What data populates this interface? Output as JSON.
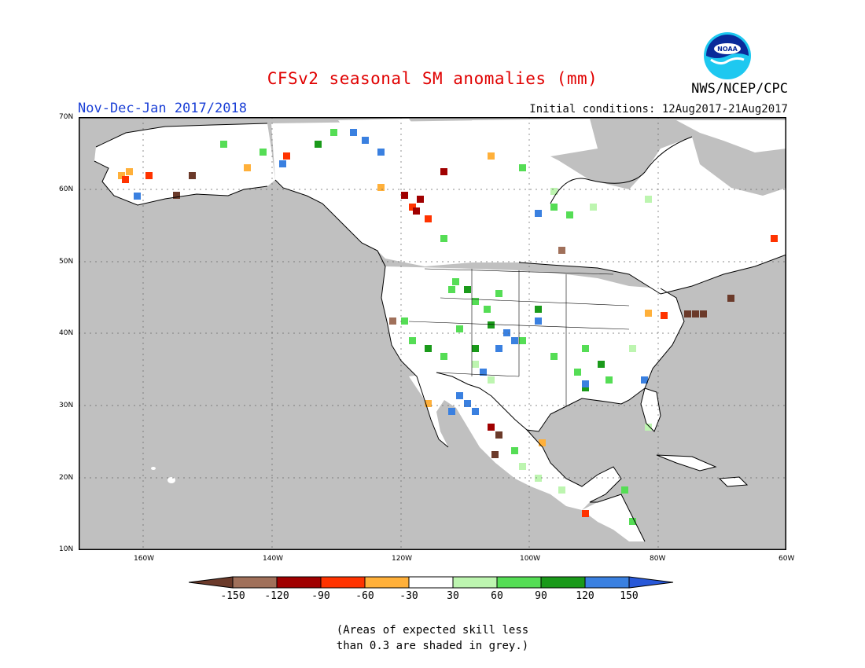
{
  "title": "CFSv2 seasonal SM anomalies (mm)",
  "season": "Nov-Dec-Jan 2017/2018",
  "initial_conditions": "Initial conditions: 12Aug2017-21Aug2017",
  "agency": "NWS/NCEP/CPC",
  "logo_text": "NOAA",
  "lat_labels": [
    "70N",
    "60N",
    "50N",
    "40N",
    "30N",
    "20N",
    "10N"
  ],
  "lon_labels": [
    "160W",
    "140W",
    "120W",
    "100W",
    "80W",
    "60W"
  ],
  "colorbar": {
    "labels": [
      "-150",
      "-120",
      "-90",
      "-60",
      "-30",
      "30",
      "60",
      "90",
      "120",
      "150"
    ],
    "colors": [
      "#6b3a2a",
      "#a0705a",
      "#a00000",
      "#ff3300",
      "#ffb03a",
      "#ffffff",
      "#bdf5b0",
      "#55dd55",
      "#1a9a1a",
      "#3a80e0",
      "#2858d8"
    ]
  },
  "note_line1": "(Areas of expected skill less",
  "note_line2": "than 0.3 are shaded in grey.)",
  "colors": {
    "grey": "#c0c0c0",
    "land_white": "#ffffff",
    "title": "#e00000",
    "season": "#1a3fd6"
  }
}
